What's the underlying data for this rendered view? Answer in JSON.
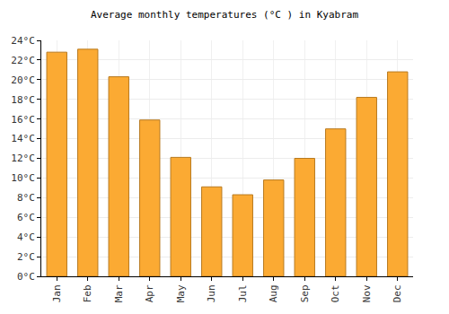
{
  "chart_data": {
    "type": "bar",
    "title": "Average monthly temperatures (°C ) in Kyabram",
    "categories": [
      "Jan",
      "Feb",
      "Mar",
      "Apr",
      "May",
      "Jun",
      "Jul",
      "Aug",
      "Sep",
      "Oct",
      "Nov",
      "Dec"
    ],
    "values": [
      22.8,
      23.1,
      20.3,
      15.9,
      12.1,
      9.1,
      8.3,
      9.8,
      12.0,
      15.0,
      18.2,
      20.8
    ],
    "color": "#fbaa33",
    "ylim": [
      0,
      24
    ],
    "yticks": [
      {
        "value": 0,
        "label": "0°C"
      },
      {
        "value": 2,
        "label": "2°C"
      },
      {
        "value": 4,
        "label": "4°C"
      },
      {
        "value": 6,
        "label": "6°C"
      },
      {
        "value": 8,
        "label": "8°C"
      },
      {
        "value": 10,
        "label": "10°C"
      },
      {
        "value": 12,
        "label": "12°C"
      },
      {
        "value": 14,
        "label": "14°C"
      },
      {
        "value": 16,
        "label": "16°C"
      },
      {
        "value": 18,
        "label": "18°C"
      },
      {
        "value": 20,
        "label": "20°C"
      },
      {
        "value": 22,
        "label": "22°C"
      },
      {
        "value": 24,
        "label": "24°C"
      }
    ],
    "grid": true
  }
}
